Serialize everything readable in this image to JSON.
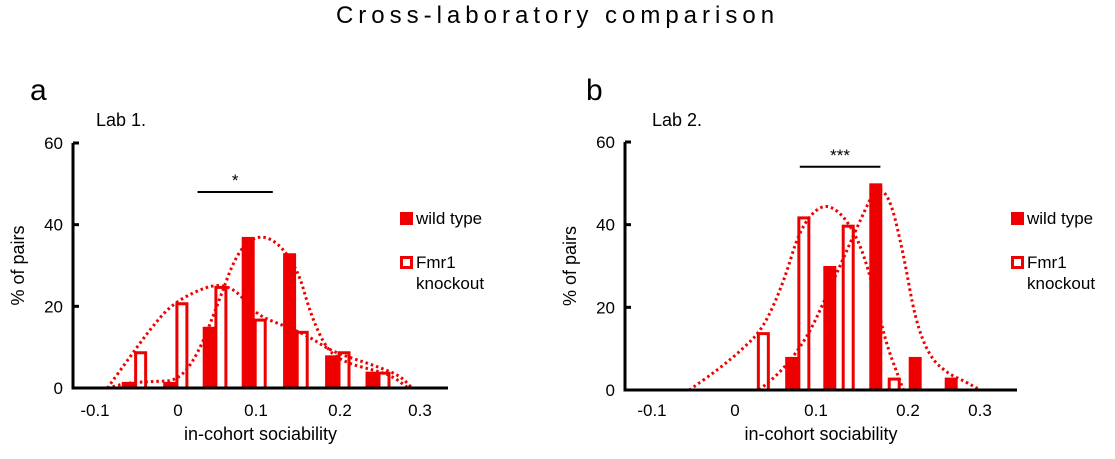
{
  "title": "Cross-laboratory comparison",
  "colors": {
    "series": "#ee0000",
    "axis": "#000000"
  },
  "chart_data": [
    {
      "type": "bar",
      "panel": "a",
      "subtitle": "Lab 1.",
      "xlabel": "in-cohort sociability",
      "ylabel": "% of pairs",
      "xlim": [
        -0.12,
        0.33
      ],
      "ylim": [
        0,
        60
      ],
      "xticks": [
        "-0.1",
        "0",
        "0.1",
        "0.2",
        "0.3"
      ],
      "xtick_values": [
        -0.1,
        0,
        0.1,
        0.2,
        0.3
      ],
      "yticks": [
        "0",
        "20",
        "40",
        "60"
      ],
      "ytick_values": [
        0,
        20,
        40,
        60
      ],
      "grid": false,
      "legend_position": "right",
      "significance": {
        "label": "*",
        "x_from": 0.025,
        "x_to": 0.12,
        "y": 48
      },
      "series": [
        {
          "name": "wild type",
          "style": "filled",
          "x": [
            -0.06,
            -0.01,
            0.04,
            0.09,
            0.14,
            0.19,
            0.24
          ],
          "values": [
            1.5,
            1.5,
            15,
            37,
            33,
            8,
            4
          ],
          "fit_curve": [
            [
              -0.085,
              0
            ],
            [
              -0.06,
              1.3
            ],
            [
              -0.03,
              1.6
            ],
            [
              0,
              1.8
            ],
            [
              0.025,
              8
            ],
            [
              0.05,
              20
            ],
            [
              0.075,
              33
            ],
            [
              0.1,
              37.5
            ],
            [
              0.125,
              36
            ],
            [
              0.15,
              29
            ],
            [
              0.165,
              18
            ],
            [
              0.185,
              9
            ],
            [
              0.21,
              6
            ],
            [
              0.24,
              4.5
            ],
            [
              0.265,
              3
            ],
            [
              0.285,
              0
            ]
          ]
        },
        {
          "name": "Fmr1 knockout",
          "style": "outline",
          "x": [
            -0.045,
            0.005,
            0.055,
            0.105,
            0.155,
            0.205,
            0.255
          ],
          "values": [
            9,
            21,
            25,
            17,
            14,
            9,
            4
          ],
          "fit_curve": [
            [
              -0.085,
              0
            ],
            [
              -0.06,
              7
            ],
            [
              -0.035,
              14
            ],
            [
              -0.01,
              20
            ],
            [
              0.02,
              23.5
            ],
            [
              0.05,
              25.5
            ],
            [
              0.075,
              24
            ],
            [
              0.1,
              18
            ],
            [
              0.13,
              15.5
            ],
            [
              0.16,
              13
            ],
            [
              0.19,
              9
            ],
            [
              0.22,
              7
            ],
            [
              0.25,
              5
            ],
            [
              0.275,
              3
            ],
            [
              0.29,
              0
            ]
          ]
        }
      ]
    },
    {
      "type": "bar",
      "panel": "b",
      "subtitle": "Lab 2.",
      "xlabel": "in-cohort sociability",
      "ylabel": "% of pairs",
      "xlim": [
        -0.13,
        0.34
      ],
      "ylim": [
        0,
        60
      ],
      "xticks": [
        "-0.1",
        "0",
        "0.1",
        "0.2",
        "0.3"
      ],
      "xtick_values": [
        -0.1,
        0,
        0.1,
        0.2,
        0.3
      ],
      "yticks": [
        "0",
        "20",
        "40",
        "60"
      ],
      "ytick_values": [
        0,
        20,
        40,
        60
      ],
      "grid": false,
      "legend_position": "right",
      "significance": {
        "label": "***",
        "x_from": 0.08,
        "x_to": 0.17,
        "y": 54
      },
      "series": [
        {
          "name": "wild type",
          "style": "filled",
          "x": [
            0.07,
            0.115,
            0.165,
            0.21,
            0.26
          ],
          "values": [
            8,
            30,
            50,
            8,
            3
          ],
          "fit_curve": [
            [
              0.03,
              0
            ],
            [
              0.06,
              5
            ],
            [
              0.09,
              13
            ],
            [
              0.11,
              22
            ],
            [
              0.13,
              32
            ],
            [
              0.15,
              42
            ],
            [
              0.165,
              49
            ],
            [
              0.18,
              47
            ],
            [
              0.195,
              33
            ],
            [
              0.21,
              17
            ],
            [
              0.23,
              8
            ],
            [
              0.255,
              4
            ],
            [
              0.28,
              2
            ],
            [
              0.3,
              0
            ]
          ]
        },
        {
          "name": "Fmr1 knockout",
          "style": "outline",
          "x": [
            0.035,
            0.085,
            0.135,
            0.185
          ],
          "values": [
            14,
            42,
            40,
            3
          ],
          "fit_curve": [
            [
              -0.055,
              0
            ],
            [
              -0.02,
              5
            ],
            [
              0.01,
              10
            ],
            [
              0.035,
              15
            ],
            [
              0.06,
              26
            ],
            [
              0.08,
              39
            ],
            [
              0.105,
              45
            ],
            [
              0.125,
              43.5
            ],
            [
              0.145,
              37
            ],
            [
              0.16,
              27
            ],
            [
              0.175,
              12
            ],
            [
              0.19,
              3
            ],
            [
              0.195,
              0
            ]
          ]
        }
      ]
    }
  ]
}
